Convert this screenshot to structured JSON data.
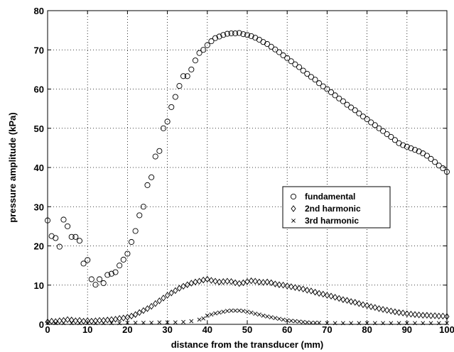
{
  "chart_data": {
    "type": "scatter",
    "xlabel": "distance from the transducer (mm)",
    "ylabel": "pressure amplitude (kPa)",
    "xlim": [
      0,
      100
    ],
    "ylim": [
      0,
      80
    ],
    "xticks": [
      0,
      10,
      20,
      30,
      40,
      50,
      60,
      70,
      80,
      90,
      100
    ],
    "yticks": [
      0,
      10,
      20,
      30,
      40,
      50,
      60,
      70,
      80
    ],
    "grid": true,
    "legend_position": "center-right",
    "series": [
      {
        "name": "fundamental",
        "marker": "circle",
        "points": [
          [
            0,
            26.5
          ],
          [
            1,
            22.5
          ],
          [
            2,
            22.0
          ],
          [
            3,
            19.8
          ],
          [
            4,
            26.7
          ],
          [
            5,
            25.0
          ],
          [
            6,
            22.3
          ],
          [
            7,
            22.3
          ],
          [
            8,
            21.3
          ],
          [
            9,
            15.5
          ],
          [
            10,
            16.4
          ],
          [
            11,
            11.5
          ],
          [
            12,
            10.1
          ],
          [
            13,
            11.5
          ],
          [
            14,
            10.5
          ],
          [
            15,
            12.6
          ],
          [
            16,
            12.9
          ],
          [
            17,
            13.3
          ],
          [
            18,
            15.0
          ],
          [
            19,
            16.5
          ],
          [
            20,
            18.0
          ],
          [
            21,
            21.0
          ],
          [
            22,
            23.8
          ],
          [
            23,
            27.8
          ],
          [
            24,
            30.0
          ],
          [
            25,
            35.5
          ],
          [
            26,
            37.5
          ],
          [
            27,
            42.8
          ],
          [
            28,
            44.2
          ],
          [
            29,
            50.0
          ],
          [
            30,
            51.7
          ],
          [
            31,
            55.4
          ],
          [
            32,
            58.0
          ],
          [
            33,
            60.8
          ],
          [
            34,
            63.3
          ],
          [
            35,
            63.3
          ],
          [
            36,
            65.0
          ],
          [
            37,
            67.3
          ],
          [
            38,
            69.2
          ],
          [
            39,
            70.0
          ],
          [
            40,
            71.2
          ],
          [
            41,
            72.2
          ],
          [
            42,
            73.0
          ],
          [
            43,
            73.4
          ],
          [
            44,
            73.8
          ],
          [
            45,
            74.1
          ],
          [
            46,
            74.2
          ],
          [
            47,
            74.2
          ],
          [
            48,
            74.3
          ],
          [
            49,
            74.0
          ],
          [
            50,
            73.8
          ],
          [
            51,
            73.5
          ],
          [
            52,
            73.1
          ],
          [
            53,
            72.6
          ],
          [
            54,
            72.0
          ],
          [
            55,
            71.5
          ],
          [
            56,
            70.8
          ],
          [
            57,
            70.1
          ],
          [
            58,
            69.4
          ],
          [
            59,
            68.6
          ],
          [
            60,
            67.9
          ],
          [
            61,
            67.1
          ],
          [
            62,
            66.3
          ],
          [
            63,
            65.6
          ],
          [
            64,
            64.7
          ],
          [
            65,
            63.9
          ],
          [
            66,
            63.1
          ],
          [
            67,
            62.4
          ],
          [
            68,
            61.5
          ],
          [
            69,
            60.7
          ],
          [
            70,
            60.0
          ],
          [
            71,
            59.2
          ],
          [
            72,
            58.4
          ],
          [
            73,
            57.6
          ],
          [
            74,
            56.9
          ],
          [
            75,
            56.0
          ],
          [
            76,
            55.3
          ],
          [
            77,
            54.6
          ],
          [
            78,
            53.8
          ],
          [
            79,
            53.0
          ],
          [
            80,
            52.3
          ],
          [
            81,
            51.5
          ],
          [
            82,
            50.8
          ],
          [
            83,
            50.0
          ],
          [
            84,
            49.3
          ],
          [
            85,
            48.5
          ],
          [
            86,
            47.8
          ],
          [
            87,
            47.0
          ],
          [
            88,
            46.2
          ],
          [
            89,
            45.7
          ],
          [
            90,
            45.3
          ],
          [
            91,
            44.9
          ],
          [
            92,
            44.5
          ],
          [
            93,
            44.1
          ],
          [
            94,
            43.6
          ],
          [
            95,
            43.0
          ],
          [
            96,
            42.2
          ],
          [
            97,
            41.4
          ],
          [
            98,
            40.5
          ],
          [
            99,
            39.8
          ],
          [
            100,
            38.9
          ]
        ]
      },
      {
        "name": "2nd harmonic",
        "marker": "diamond",
        "points": [
          [
            0,
            0.6
          ],
          [
            1,
            0.8
          ],
          [
            2,
            0.7
          ],
          [
            3,
            0.9
          ],
          [
            4,
            1.0
          ],
          [
            5,
            1.2
          ],
          [
            6,
            1.1
          ],
          [
            7,
            0.9
          ],
          [
            8,
            1.0
          ],
          [
            9,
            0.8
          ],
          [
            10,
            0.9
          ],
          [
            11,
            0.8
          ],
          [
            12,
            0.9
          ],
          [
            13,
            1.0
          ],
          [
            14,
            1.0
          ],
          [
            15,
            1.1
          ],
          [
            16,
            1.2
          ],
          [
            17,
            1.3
          ],
          [
            18,
            1.5
          ],
          [
            19,
            1.6
          ],
          [
            20,
            1.8
          ],
          [
            21,
            2.1
          ],
          [
            22,
            2.5
          ],
          [
            23,
            3.0
          ],
          [
            24,
            3.5
          ],
          [
            25,
            4.0
          ],
          [
            26,
            4.6
          ],
          [
            27,
            5.3
          ],
          [
            28,
            6.0
          ],
          [
            29,
            6.7
          ],
          [
            30,
            7.4
          ],
          [
            31,
            8.0
          ],
          [
            32,
            8.6
          ],
          [
            33,
            9.2
          ],
          [
            34,
            9.7
          ],
          [
            35,
            10.1
          ],
          [
            36,
            10.5
          ],
          [
            37,
            10.8
          ],
          [
            38,
            11.0
          ],
          [
            39,
            11.3
          ],
          [
            40,
            11.5
          ],
          [
            41,
            11.2
          ],
          [
            42,
            11.0
          ],
          [
            43,
            10.8
          ],
          [
            44,
            10.9
          ],
          [
            45,
            11.0
          ],
          [
            46,
            10.9
          ],
          [
            47,
            10.6
          ],
          [
            48,
            10.4
          ],
          [
            49,
            10.6
          ],
          [
            50,
            10.9
          ],
          [
            51,
            11.1
          ],
          [
            52,
            11.0
          ],
          [
            53,
            10.8
          ],
          [
            54,
            10.7
          ],
          [
            55,
            10.8
          ],
          [
            56,
            10.6
          ],
          [
            57,
            10.3
          ],
          [
            58,
            10.1
          ],
          [
            59,
            10.0
          ],
          [
            60,
            9.8
          ],
          [
            61,
            9.6
          ],
          [
            62,
            9.4
          ],
          [
            63,
            9.2
          ],
          [
            64,
            9.0
          ],
          [
            65,
            8.7
          ],
          [
            66,
            8.5
          ],
          [
            67,
            8.2
          ],
          [
            68,
            7.9
          ],
          [
            69,
            7.7
          ],
          [
            70,
            7.4
          ],
          [
            71,
            7.2
          ],
          [
            72,
            6.9
          ],
          [
            73,
            6.6
          ],
          [
            74,
            6.3
          ],
          [
            75,
            6.1
          ],
          [
            76,
            5.8
          ],
          [
            77,
            5.6
          ],
          [
            78,
            5.3
          ],
          [
            79,
            5.0
          ],
          [
            80,
            4.8
          ],
          [
            81,
            4.5
          ],
          [
            82,
            4.3
          ],
          [
            83,
            4.0
          ],
          [
            84,
            3.8
          ],
          [
            85,
            3.6
          ],
          [
            86,
            3.4
          ],
          [
            87,
            3.2
          ],
          [
            88,
            3.0
          ],
          [
            89,
            2.9
          ],
          [
            90,
            2.7
          ],
          [
            91,
            2.6
          ],
          [
            92,
            2.5
          ],
          [
            93,
            2.4
          ],
          [
            94,
            2.3
          ],
          [
            95,
            2.3
          ],
          [
            96,
            2.2
          ],
          [
            97,
            2.2
          ],
          [
            98,
            2.1
          ],
          [
            99,
            2.1
          ],
          [
            100,
            2.0
          ]
        ]
      },
      {
        "name": "3rd harmonic",
        "marker": "x",
        "points": [
          [
            0,
            0.3
          ],
          [
            2,
            0.3
          ],
          [
            4,
            0.3
          ],
          [
            6,
            0.3
          ],
          [
            8,
            0.3
          ],
          [
            10,
            0.3
          ],
          [
            12,
            0.3
          ],
          [
            14,
            0.3
          ],
          [
            16,
            0.3
          ],
          [
            18,
            0.3
          ],
          [
            20,
            0.4
          ],
          [
            22,
            0.4
          ],
          [
            24,
            0.4
          ],
          [
            26,
            0.4
          ],
          [
            28,
            0.5
          ],
          [
            30,
            0.5
          ],
          [
            32,
            0.5
          ],
          [
            34,
            0.6
          ],
          [
            36,
            0.8
          ],
          [
            38,
            1.2
          ],
          [
            39,
            1.5
          ],
          [
            40,
            2.2
          ],
          [
            41,
            2.5
          ],
          [
            42,
            2.8
          ],
          [
            43,
            3.0
          ],
          [
            44,
            3.2
          ],
          [
            45,
            3.4
          ],
          [
            46,
            3.5
          ],
          [
            47,
            3.5
          ],
          [
            48,
            3.5
          ],
          [
            49,
            3.4
          ],
          [
            50,
            3.2
          ],
          [
            51,
            3.0
          ],
          [
            52,
            2.7
          ],
          [
            53,
            2.5
          ],
          [
            54,
            2.2
          ],
          [
            55,
            2.0
          ],
          [
            56,
            1.8
          ],
          [
            57,
            1.6
          ],
          [
            58,
            1.4
          ],
          [
            59,
            1.2
          ],
          [
            60,
            1.0
          ],
          [
            61,
            0.9
          ],
          [
            62,
            0.8
          ],
          [
            63,
            0.7
          ],
          [
            64,
            0.6
          ],
          [
            65,
            0.5
          ],
          [
            66,
            0.4
          ],
          [
            67,
            0.4
          ],
          [
            68,
            0.4
          ],
          [
            70,
            0.3
          ],
          [
            72,
            0.3
          ],
          [
            74,
            0.3
          ],
          [
            76,
            0.3
          ],
          [
            78,
            0.3
          ],
          [
            80,
            0.3
          ],
          [
            82,
            0.3
          ],
          [
            84,
            0.3
          ],
          [
            86,
            0.3
          ],
          [
            88,
            0.3
          ],
          [
            90,
            0.3
          ],
          [
            92,
            0.3
          ],
          [
            94,
            0.3
          ],
          [
            96,
            0.3
          ],
          [
            98,
            0.3
          ],
          [
            100,
            0.3
          ]
        ]
      }
    ]
  }
}
